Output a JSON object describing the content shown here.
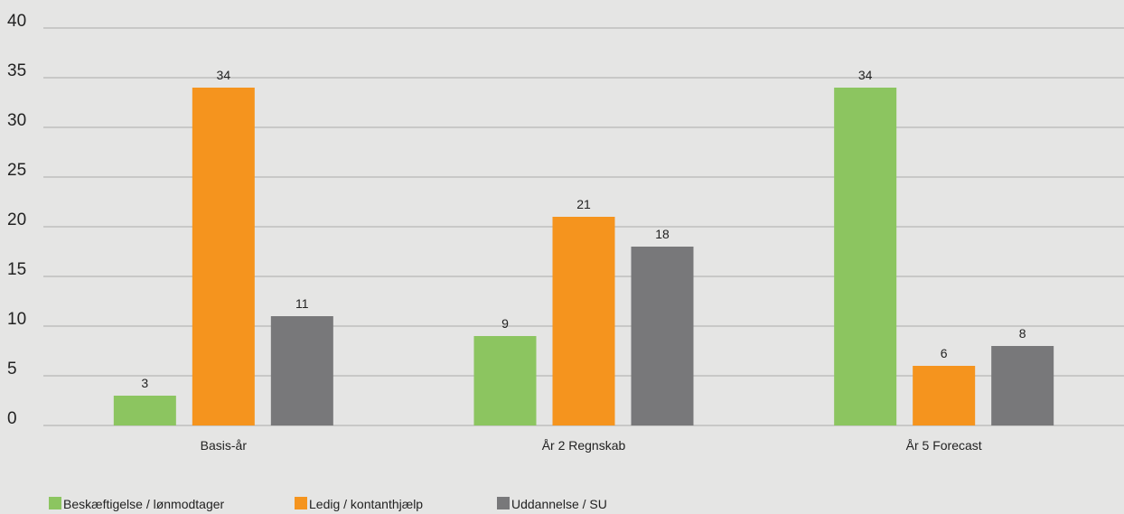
{
  "chart_data": {
    "type": "bar",
    "categories": [
      "Basis-år",
      "År 2 Regnskab",
      "År 5 Forecast"
    ],
    "series": [
      {
        "name": "Beskæftigelse / lønmodtager",
        "values": [
          3,
          9,
          34
        ],
        "color": "#8cc560"
      },
      {
        "name": "Ledig / kontanthjælp",
        "values": [
          34,
          21,
          6
        ],
        "color": "#f5941e"
      },
      {
        "name": "Uddannelse / SU",
        "values": [
          11,
          18,
          8
        ],
        "color": "#78787a"
      }
    ],
    "ylim": [
      0,
      40
    ],
    "yticks": [
      0,
      5,
      10,
      15,
      20,
      25,
      30,
      35,
      40
    ],
    "grid": true,
    "legend_position": "bottom-left",
    "title": "",
    "xlabel": "",
    "ylabel": ""
  }
}
